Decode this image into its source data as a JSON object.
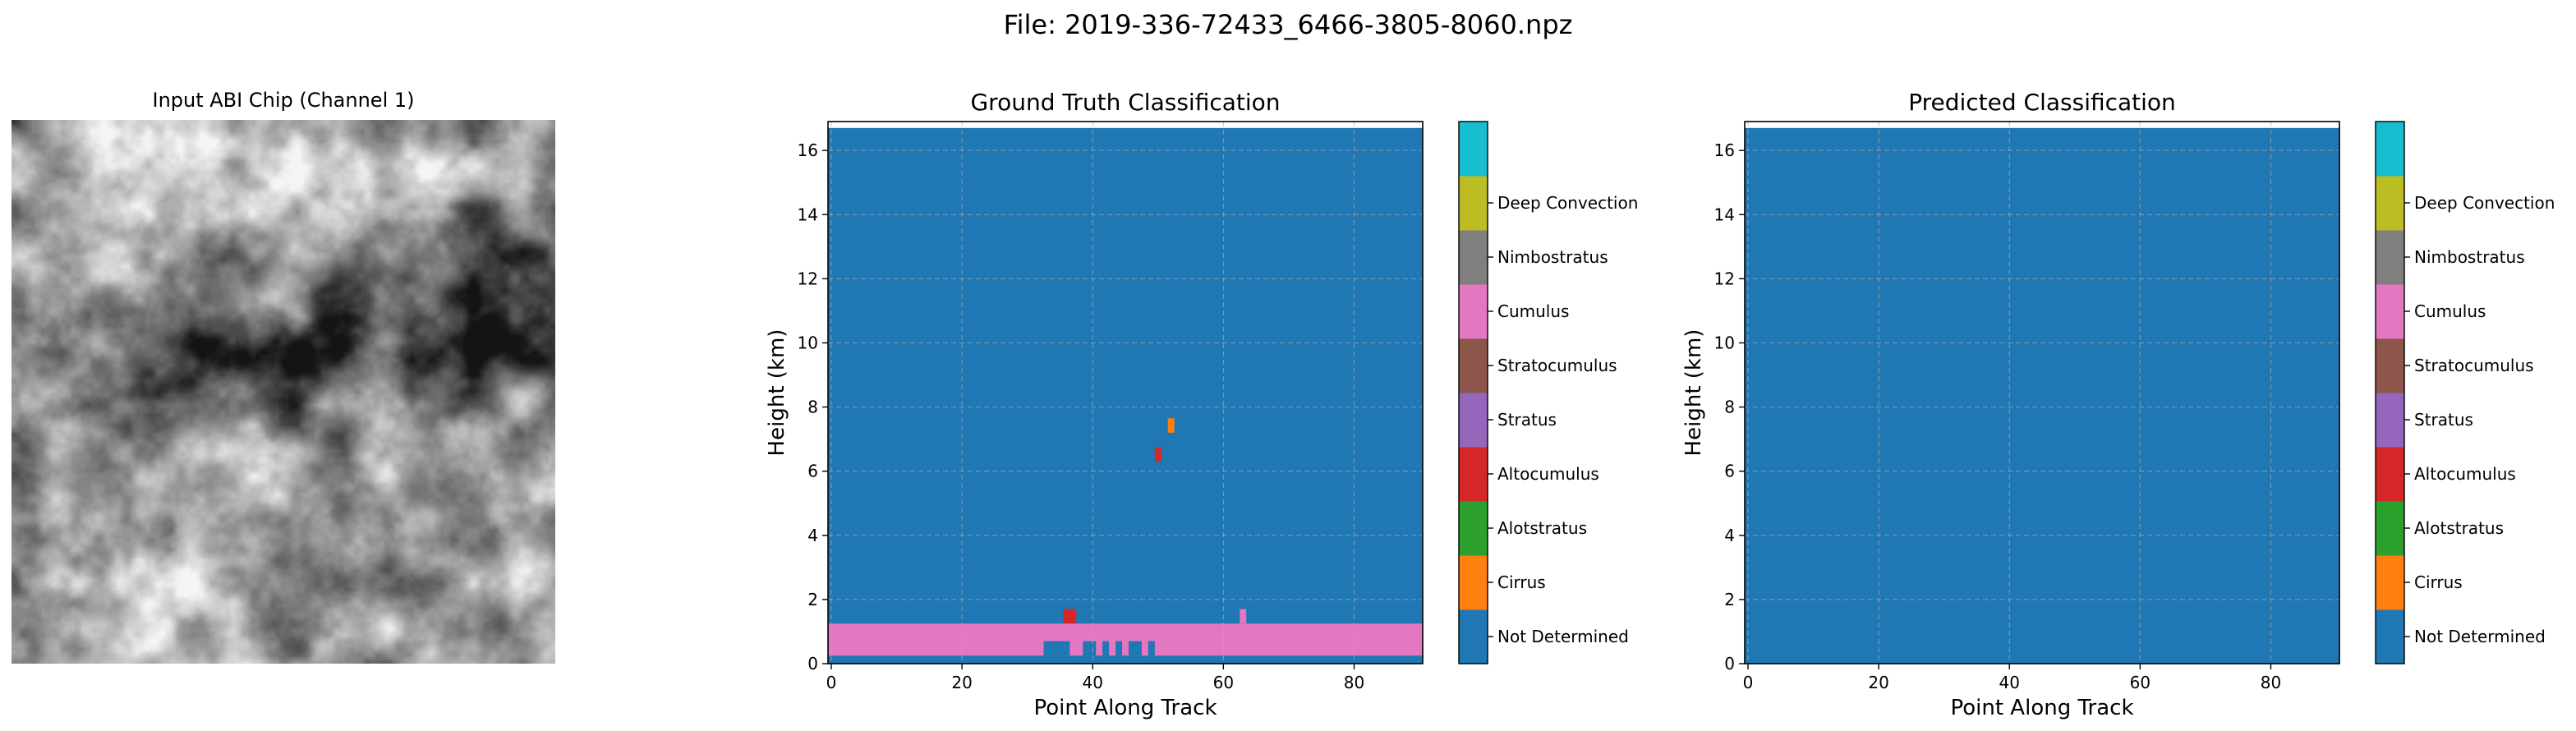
{
  "suptitle": "File: 2019-336-72433_6466-3805-8060.npz",
  "chip": {
    "title": "Input ABI Chip (Channel 1)"
  },
  "colors": {
    "classes": [
      "#1f77b4",
      "#ff7f0e",
      "#2ca02c",
      "#d62728",
      "#9467bd",
      "#8c564b",
      "#e377c2",
      "#7f7f7f",
      "#bcbd22",
      "#17becf"
    ],
    "grid": "#b0b0b0"
  },
  "chart_data": [
    {
      "type": "heatmap",
      "title": "Ground Truth Classification",
      "xlabel": "Point Along Track",
      "ylabel": "Height (km)",
      "xlim": [
        -0.5,
        90.5
      ],
      "ylim": [
        0,
        16.9
      ],
      "xticks": [
        0,
        20,
        40,
        60,
        80
      ],
      "yticks": [
        0,
        2,
        4,
        6,
        8,
        10,
        12,
        14,
        16
      ],
      "grid": true,
      "background_class": 0,
      "data_top_km": 16.7,
      "regions": [
        {
          "class": 6,
          "x0": -0.5,
          "x1": 90.5,
          "y0": 0.25,
          "y1": 1.25
        },
        {
          "class": 0,
          "x0": 32.5,
          "x1": 36.5,
          "y0": 0.25,
          "y1": 0.7
        },
        {
          "class": 0,
          "x0": 38.5,
          "x1": 40.5,
          "y0": 0.25,
          "y1": 0.7
        },
        {
          "class": 0,
          "x0": 41.5,
          "x1": 42.5,
          "y0": 0.25,
          "y1": 0.7
        },
        {
          "class": 0,
          "x0": 43.5,
          "x1": 44.5,
          "y0": 0.25,
          "y1": 0.7
        },
        {
          "class": 0,
          "x0": 45.5,
          "x1": 47.5,
          "y0": 0.25,
          "y1": 0.7
        },
        {
          "class": 0,
          "x0": 48.5,
          "x1": 49.5,
          "y0": 0.25,
          "y1": 0.7
        },
        {
          "class": 3,
          "x0": 35.5,
          "x1": 37.5,
          "y0": 1.25,
          "y1": 1.7
        },
        {
          "class": 6,
          "x0": 62.5,
          "x1": 63.5,
          "y0": 1.25,
          "y1": 1.7
        },
        {
          "class": 3,
          "x0": 49.5,
          "x1": 50.5,
          "y0": 6.3,
          "y1": 6.75
        },
        {
          "class": 1,
          "x0": 51.5,
          "x1": 52.5,
          "y0": 7.2,
          "y1": 7.65
        }
      ]
    },
    {
      "type": "heatmap",
      "title": "Predicted Classification",
      "xlabel": "Point Along Track",
      "ylabel": "Height (km)",
      "xlim": [
        -0.5,
        90.5
      ],
      "ylim": [
        0,
        16.9
      ],
      "xticks": [
        0,
        20,
        40,
        60,
        80
      ],
      "yticks": [
        0,
        2,
        4,
        6,
        8,
        10,
        12,
        14,
        16
      ],
      "grid": true,
      "background_class": 0,
      "data_top_km": 16.7,
      "regions": []
    }
  ],
  "colorbar": {
    "labels": [
      "Not Determined",
      "Cirrus",
      "Alotstratus",
      "Altocumulus",
      "Stratus",
      "Stratocumulus",
      "Cumulus",
      "Nimbostratus",
      "Deep Convection"
    ]
  }
}
